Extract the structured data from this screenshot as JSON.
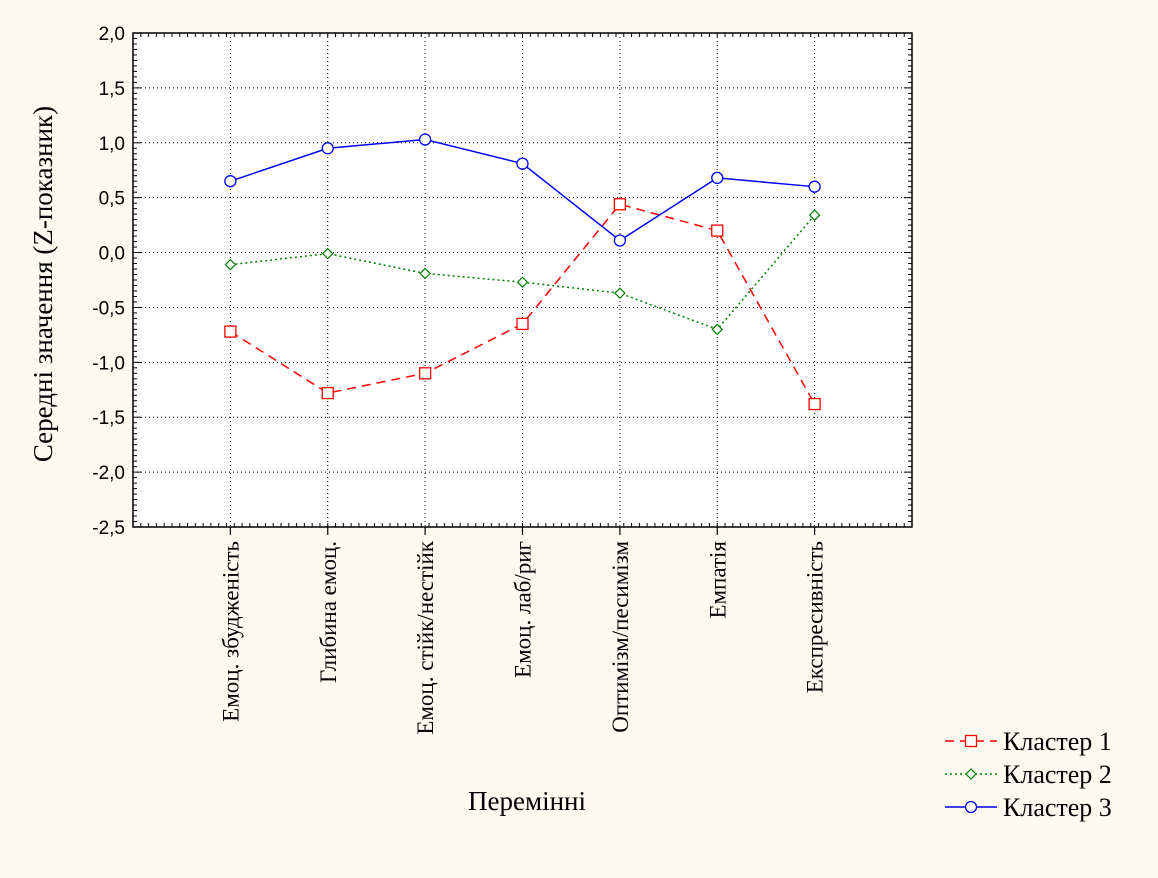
{
  "chart_data": {
    "type": "line",
    "title": "",
    "xlabel": "Перемінні",
    "ylabel": "Середні значення (Z-показник)",
    "ylim": [
      -2.5,
      2.0
    ],
    "yticks": [
      "2,0",
      "1,5",
      "1,0",
      "0,5",
      "0,0",
      "-0,5",
      "-1,0",
      "-1,5",
      "-2,0",
      "-2,5"
    ],
    "categories": [
      "Емоц. збудженість",
      "Глибина емоц.",
      "Емоц. стійк/нестійк",
      "Емоц. лаб/риг",
      "Оптимізм/песимізм",
      "Емпатія",
      "Експресивність"
    ],
    "grid": true,
    "legend_position": "bottom-right",
    "series": [
      {
        "name": "Кластер  1",
        "color": "#ff0000",
        "marker": "square",
        "dash": "dashed",
        "values": [
          -0.72,
          -1.28,
          -1.1,
          -0.65,
          0.44,
          0.2,
          -1.38
        ]
      },
      {
        "name": "Кластер  2",
        "color": "#008000",
        "marker": "diamond",
        "dash": "dotted",
        "values": [
          -0.11,
          -0.01,
          -0.19,
          -0.27,
          -0.37,
          -0.7,
          0.34
        ]
      },
      {
        "name": "Кластер  3",
        "color": "#0000ff",
        "marker": "circle",
        "dash": "solid",
        "values": [
          0.65,
          0.95,
          1.03,
          0.81,
          0.11,
          0.68,
          0.6
        ]
      }
    ]
  }
}
